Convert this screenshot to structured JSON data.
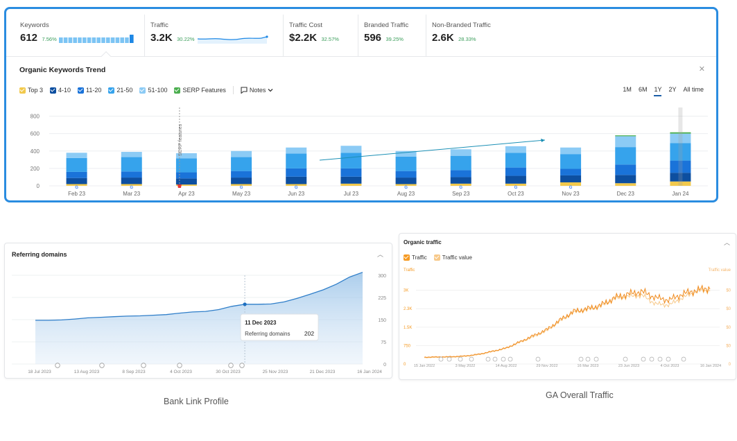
{
  "kpis": [
    {
      "label": "Keywords",
      "value": "612",
      "pct": "7.56%"
    },
    {
      "label": "Traffic",
      "value": "3.2K",
      "pct": "30.22%"
    },
    {
      "label": "Traffic Cost",
      "value": "$2.2K",
      "pct": "32.57%"
    },
    {
      "label": "Branded Traffic",
      "value": "596",
      "pct": "39.25%"
    },
    {
      "label": "Non-Branded Traffic",
      "value": "2.6K",
      "pct": "28.33%"
    }
  ],
  "trend": {
    "title": "Organic Keywords Trend",
    "legend": [
      {
        "label": "Top 3",
        "color": "#f2c94c"
      },
      {
        "label": "4-10",
        "color": "#0d4fa0"
      },
      {
        "label": "11-20",
        "color": "#1a73d9"
      },
      {
        "label": "21-50",
        "color": "#36a3ec"
      },
      {
        "label": "51-100",
        "color": "#8ccbf5"
      },
      {
        "label": "SERP Features",
        "color": "#4caf50"
      }
    ],
    "notes_label": "Notes",
    "time_ranges": [
      "1M",
      "6M",
      "1Y",
      "2Y",
      "All time"
    ],
    "active_range": "1Y",
    "annotation": "SERP features",
    "close_icon": "close-icon"
  },
  "chart_data": [
    {
      "type": "bar",
      "title": "Organic Keywords Trend",
      "categories": [
        "Feb 23",
        "Mar 23",
        "Apr 23",
        "May 23",
        "Jun 23",
        "Jul 23",
        "Aug 23",
        "Sep 23",
        "Oct 23",
        "Nov 23",
        "Dec 23",
        "Jan 24"
      ],
      "yticks": [
        "0",
        "200",
        "400",
        "600",
        "800"
      ],
      "ylim": [
        0,
        900
      ],
      "series": [
        {
          "name": "Top 3",
          "values": [
            20,
            20,
            15,
            20,
            20,
            25,
            20,
            25,
            25,
            40,
            30,
            50
          ]
        },
        {
          "name": "4-10",
          "values": [
            70,
            75,
            70,
            75,
            85,
            80,
            75,
            75,
            90,
            80,
            95,
            100
          ]
        },
        {
          "name": "11-20",
          "values": [
            70,
            70,
            70,
            75,
            95,
            95,
            75,
            80,
            95,
            75,
            120,
            140
          ]
        },
        {
          "name": "21-50",
          "values": [
            160,
            165,
            160,
            160,
            170,
            180,
            165,
            165,
            170,
            170,
            200,
            200
          ]
        },
        {
          "name": "51-100",
          "values": [
            60,
            60,
            60,
            70,
            70,
            80,
            65,
            75,
            75,
            75,
            125,
            110
          ]
        },
        {
          "name": "SERP Features",
          "values": [
            0,
            0,
            0,
            0,
            0,
            0,
            0,
            0,
            0,
            0,
            10,
            15
          ]
        }
      ]
    },
    {
      "type": "area",
      "title": "Referring domains",
      "x_labels": [
        "18 Jul 2023",
        "13 Aug 2023",
        "8 Sep 2023",
        "4 Oct 2023",
        "30 Oct 2023",
        "25 Nov 2023",
        "21 Dec 2023",
        "16 Jan 2024"
      ],
      "yticks": [
        "0",
        "75",
        "150",
        "225",
        "300"
      ],
      "ylim": [
        0,
        300
      ],
      "values": [
        148,
        148,
        149,
        152,
        156,
        158,
        160,
        162,
        163,
        165,
        167,
        172,
        176,
        178,
        184,
        195,
        202,
        202,
        203,
        210,
        222,
        236,
        251,
        270,
        294,
        310
      ],
      "tooltip": {
        "date": "11 Dec 2023",
        "label": "Referring domains",
        "value": "202"
      }
    },
    {
      "type": "line",
      "title": "Organic traffic",
      "legend": [
        "Traffic",
        "Traffic value"
      ],
      "left_axis_label": "Traffic",
      "right_axis_label": "Traffic value",
      "left_ticks": [
        "0",
        "750",
        "1.5K",
        "2.3K",
        "3K"
      ],
      "right_ticks": [
        "0",
        "$0",
        "$0",
        "$0",
        "$0"
      ],
      "x_labels": [
        "15 Jan 2022",
        "3 May 2022",
        "14 Aug 2022",
        "29 Nov 2022",
        "16 Mar 2023",
        "23 Jun 2023",
        "4 Oct 2023",
        "16 Jan 2024"
      ],
      "values": [
        280,
        290,
        300,
        330,
        400,
        520,
        650,
        900,
        1150,
        1400,
        1800,
        2150,
        2250,
        2400,
        2700,
        2850,
        2950,
        2700,
        2600,
        2850,
        3000,
        3100
      ],
      "values2": [
        260,
        270,
        280,
        310,
        380,
        500,
        630,
        870,
        1100,
        1350,
        1750,
        2100,
        2200,
        2350,
        2650,
        2750,
        2800,
        2450,
        2400,
        2700,
        2950,
        3000
      ]
    }
  ],
  "panels": {
    "ref_title": "Referring domains",
    "traffic_title": "Organic traffic",
    "caption_left": "Bank Link Profile",
    "caption_right": "GA Overall Traffic",
    "collapse_icon": "chevron-up-icon"
  }
}
